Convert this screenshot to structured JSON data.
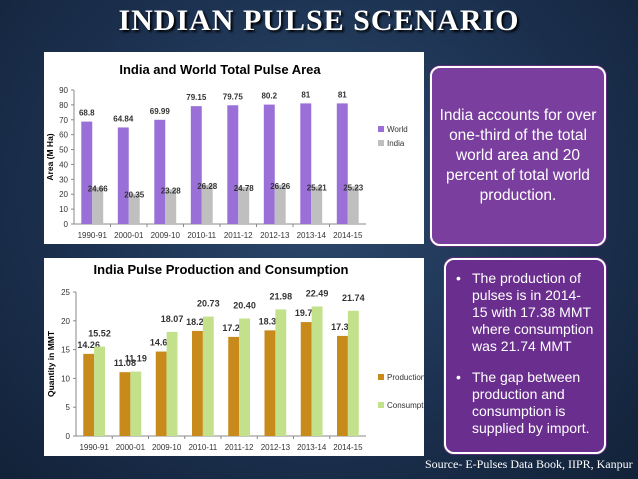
{
  "title": "INDIAN PULSE SCENARIO",
  "chart_data": [
    {
      "type": "bar",
      "title": "India and World Total Pulse Area",
      "xlabel": "",
      "ylabel": "Area (M Ha)",
      "ylim": [
        0,
        90
      ],
      "yticks": [
        "0",
        "10",
        "20",
        "30",
        "40",
        "50",
        "60",
        "70",
        "80",
        "90"
      ],
      "categories": [
        "1990-91",
        "2000-01",
        "2009-10",
        "2010-11",
        "2011-12",
        "2012-13",
        "2013-14",
        "2014-15"
      ],
      "series": [
        {
          "name": "World",
          "color": "#9b6fd8",
          "values": [
            68.8,
            64.84,
            69.99,
            79.15,
            79.75,
            80.2,
            81,
            81
          ],
          "labels": [
            "68.8",
            "64.84",
            "69.99",
            "79.15",
            "79.75",
            "80.2",
            "81",
            "81"
          ]
        },
        {
          "name": "India",
          "color": "#bfbfbf",
          "values": [
            24.66,
            20.35,
            23.28,
            26.28,
            24.78,
            26.26,
            25.21,
            25.23
          ],
          "labels": [
            "24.66",
            "20.35",
            "23.28",
            "26.28",
            "24.78",
            "26.26",
            "25.21",
            "25.23"
          ]
        }
      ],
      "grid": false,
      "legend": "right"
    },
    {
      "type": "bar",
      "title": "India Pulse Production and Consumption",
      "xlabel": "",
      "ylabel": "Quantity in MMT",
      "ylim": [
        0,
        25
      ],
      "yticks": [
        "0",
        "5",
        "10",
        "15",
        "20",
        "25"
      ],
      "categories": [
        "1990-91",
        "2000-01",
        "2009-10",
        "2010-11",
        "2011-12",
        "2012-13",
        "2013-14",
        "2014-15"
      ],
      "series": [
        {
          "name": "Production",
          "color": "#c88a1a",
          "values": [
            14.26,
            11.08,
            14.66,
            18.24,
            17.21,
            18.34,
            19.78,
            17.38
          ],
          "labels": [
            "14.26",
            "11.08",
            "14.66",
            "18.24",
            "17.21",
            "18.34",
            "19.78",
            "17.38"
          ]
        },
        {
          "name": "Consumption",
          "color": "#c3e08a",
          "values": [
            15.52,
            11.19,
            18.07,
            20.73,
            20.4,
            21.98,
            22.49,
            21.74
          ],
          "labels": [
            "15.52",
            "11.19",
            "18.07",
            "20.73",
            "20.40",
            "21.98",
            "22.49",
            "21.74"
          ]
        }
      ],
      "grid": false,
      "legend": "right"
    }
  ],
  "box1": {
    "text": "India accounts for over one-third of the total world area and 20 percent of total world production."
  },
  "box2": {
    "bullet1": "The  production of pulses is in 2014-15 with 17.38 MMT where consumption was 21.74 MMT",
    "bullet2": "The gap between production and consumption is supplied by import."
  },
  "source": "Source- E-Pulses Data Book, IIPR, Kanpur"
}
